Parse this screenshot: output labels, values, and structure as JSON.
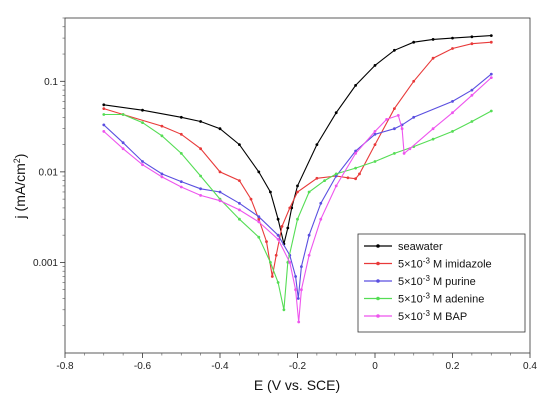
{
  "chart_data": {
    "type": "line",
    "title": "",
    "xlabel": "E (V vs. SCE)",
    "ylabel_main": "j (mA/cm",
    "ylabel_sup": "2",
    "ylabel_close": ")",
    "xlim": [
      -0.8,
      0.4
    ],
    "ylim": [
      0.0001,
      0.5
    ],
    "yscale": "log",
    "grid": false,
    "legend_position": "bottom-right",
    "xticks": [
      -0.8,
      -0.6,
      -0.4,
      -0.2,
      0,
      0.2,
      0.4
    ],
    "xtick_labels": [
      "-0.8",
      "-0.6",
      "-0.4",
      "-0.2",
      "0",
      "0.2",
      "0.4"
    ],
    "yticks": [
      0.001,
      0.01,
      0.1
    ],
    "ytick_labels": [
      "0.001",
      "0.01",
      "0.1"
    ],
    "series": [
      {
        "name_parts": [
          "seawater"
        ],
        "color": "#000000",
        "points": [
          [
            -0.7,
            0.055
          ],
          [
            -0.6,
            0.048
          ],
          [
            -0.5,
            0.04
          ],
          [
            -0.45,
            0.036
          ],
          [
            -0.4,
            0.03
          ],
          [
            -0.35,
            0.02
          ],
          [
            -0.3,
            0.01
          ],
          [
            -0.27,
            0.006
          ],
          [
            -0.25,
            0.003
          ],
          [
            -0.235,
            0.0016
          ],
          [
            -0.225,
            0.0024
          ],
          [
            -0.215,
            0.004
          ],
          [
            -0.2,
            0.007
          ],
          [
            -0.15,
            0.02
          ],
          [
            -0.1,
            0.045
          ],
          [
            -0.05,
            0.09
          ],
          [
            0,
            0.15
          ],
          [
            0.05,
            0.22
          ],
          [
            0.1,
            0.27
          ],
          [
            0.15,
            0.29
          ],
          [
            0.2,
            0.3
          ],
          [
            0.25,
            0.31
          ],
          [
            0.3,
            0.32
          ]
        ]
      },
      {
        "name_parts": [
          "5×10",
          "-3",
          " M imidazole"
        ],
        "color": "#e83a3a",
        "points": [
          [
            -0.7,
            0.05
          ],
          [
            -0.65,
            0.043
          ],
          [
            -0.55,
            0.032
          ],
          [
            -0.5,
            0.026
          ],
          [
            -0.45,
            0.018
          ],
          [
            -0.4,
            0.01
          ],
          [
            -0.35,
            0.008
          ],
          [
            -0.32,
            0.005
          ],
          [
            -0.3,
            0.003
          ],
          [
            -0.28,
            0.0017
          ],
          [
            -0.265,
            0.0007
          ],
          [
            -0.255,
            0.0012
          ],
          [
            -0.24,
            0.0025
          ],
          [
            -0.22,
            0.004
          ],
          [
            -0.2,
            0.006
          ],
          [
            -0.15,
            0.0085
          ],
          [
            -0.1,
            0.009
          ],
          [
            -0.07,
            0.0086
          ],
          [
            -0.05,
            0.0084
          ],
          [
            -0.04,
            0.0095
          ],
          [
            0,
            0.02
          ],
          [
            0.05,
            0.05
          ],
          [
            0.1,
            0.1
          ],
          [
            0.15,
            0.18
          ],
          [
            0.2,
            0.23
          ],
          [
            0.25,
            0.26
          ],
          [
            0.3,
            0.27
          ]
        ]
      },
      {
        "name_parts": [
          "5×10",
          "-3",
          " M purine"
        ],
        "color": "#5a4fe0",
        "points": [
          [
            -0.7,
            0.033
          ],
          [
            -0.65,
            0.021
          ],
          [
            -0.6,
            0.013
          ],
          [
            -0.55,
            0.0095
          ],
          [
            -0.5,
            0.0078
          ],
          [
            -0.45,
            0.0065
          ],
          [
            -0.4,
            0.006
          ],
          [
            -0.35,
            0.0045
          ],
          [
            -0.3,
            0.0032
          ],
          [
            -0.25,
            0.002
          ],
          [
            -0.22,
            0.0012
          ],
          [
            -0.205,
            0.0007
          ],
          [
            -0.198,
            0.0004
          ],
          [
            -0.19,
            0.0009
          ],
          [
            -0.17,
            0.002
          ],
          [
            -0.14,
            0.0045
          ],
          [
            -0.1,
            0.009
          ],
          [
            -0.05,
            0.017
          ],
          [
            0,
            0.026
          ],
          [
            0.05,
            0.03
          ],
          [
            0.07,
            0.033
          ],
          [
            0.1,
            0.04
          ],
          [
            0.2,
            0.06
          ],
          [
            0.25,
            0.08
          ],
          [
            0.3,
            0.12
          ]
        ]
      },
      {
        "name_parts": [
          "5×10",
          "-3",
          " M adenine"
        ],
        "color": "#55dd55",
        "points": [
          [
            -0.7,
            0.043
          ],
          [
            -0.65,
            0.043
          ],
          [
            -0.6,
            0.035
          ],
          [
            -0.55,
            0.025
          ],
          [
            -0.5,
            0.016
          ],
          [
            -0.45,
            0.009
          ],
          [
            -0.4,
            0.005
          ],
          [
            -0.35,
            0.003
          ],
          [
            -0.3,
            0.0019
          ],
          [
            -0.27,
            0.001
          ],
          [
            -0.25,
            0.0006
          ],
          [
            -0.235,
            0.0003
          ],
          [
            -0.225,
            0.001
          ],
          [
            -0.2,
            0.003
          ],
          [
            -0.17,
            0.006
          ],
          [
            -0.13,
            0.008
          ],
          [
            -0.1,
            0.0095
          ],
          [
            -0.05,
            0.011
          ],
          [
            0,
            0.013
          ],
          [
            0.05,
            0.016
          ],
          [
            0.1,
            0.019
          ],
          [
            0.15,
            0.023
          ],
          [
            0.2,
            0.028
          ],
          [
            0.25,
            0.036
          ],
          [
            0.3,
            0.047
          ]
        ]
      },
      {
        "name_parts": [
          "5×10",
          "-3",
          " M BAP"
        ],
        "color": "#ee55ee",
        "points": [
          [
            -0.7,
            0.028
          ],
          [
            -0.65,
            0.018
          ],
          [
            -0.6,
            0.012
          ],
          [
            -0.55,
            0.0088
          ],
          [
            -0.5,
            0.0068
          ],
          [
            -0.45,
            0.0055
          ],
          [
            -0.4,
            0.0048
          ],
          [
            -0.35,
            0.0038
          ],
          [
            -0.3,
            0.0028
          ],
          [
            -0.25,
            0.0018
          ],
          [
            -0.22,
            0.001
          ],
          [
            -0.205,
            0.0005
          ],
          [
            -0.197,
            0.00022
          ],
          [
            -0.19,
            0.0005
          ],
          [
            -0.17,
            0.0012
          ],
          [
            -0.14,
            0.003
          ],
          [
            -0.1,
            0.007
          ],
          [
            -0.05,
            0.016
          ],
          [
            0,
            0.028
          ],
          [
            0.03,
            0.038
          ],
          [
            0.06,
            0.042
          ],
          [
            0.07,
            0.03
          ],
          [
            0.075,
            0.016
          ],
          [
            0.09,
            0.018
          ],
          [
            0.15,
            0.03
          ],
          [
            0.2,
            0.045
          ],
          [
            0.25,
            0.07
          ],
          [
            0.3,
            0.11
          ]
        ]
      }
    ]
  }
}
